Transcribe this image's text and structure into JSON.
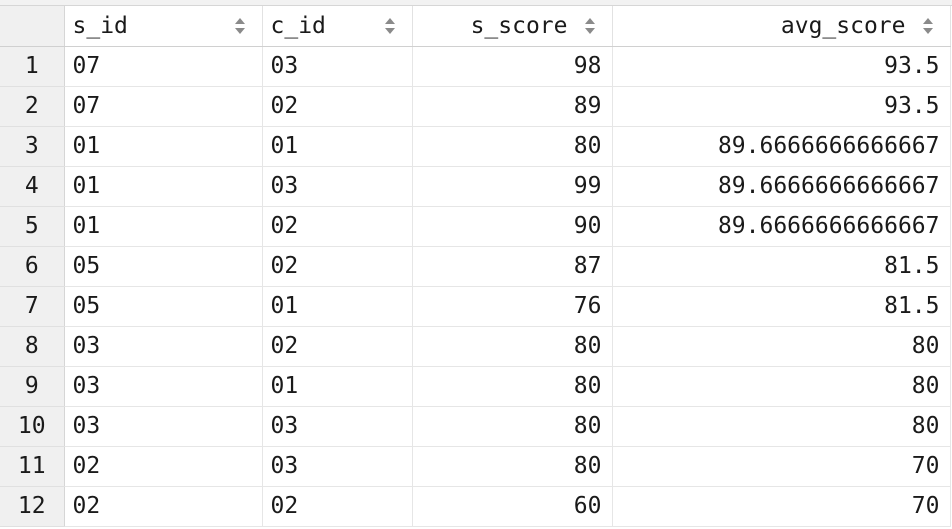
{
  "table": {
    "columns": [
      {
        "label": "s_id",
        "align": "left"
      },
      {
        "label": "c_id",
        "align": "left"
      },
      {
        "label": "s_score",
        "align": "right"
      },
      {
        "label": "avg_score",
        "align": "right"
      }
    ],
    "rows": [
      {
        "num": "1",
        "s_id": "07",
        "c_id": "03",
        "s_score": "98",
        "avg_score": "93.5"
      },
      {
        "num": "2",
        "s_id": "07",
        "c_id": "02",
        "s_score": "89",
        "avg_score": "93.5"
      },
      {
        "num": "3",
        "s_id": "01",
        "c_id": "01",
        "s_score": "80",
        "avg_score": "89.6666666666667"
      },
      {
        "num": "4",
        "s_id": "01",
        "c_id": "03",
        "s_score": "99",
        "avg_score": "89.6666666666667"
      },
      {
        "num": "5",
        "s_id": "01",
        "c_id": "02",
        "s_score": "90",
        "avg_score": "89.6666666666667"
      },
      {
        "num": "6",
        "s_id": "05",
        "c_id": "02",
        "s_score": "87",
        "avg_score": "81.5"
      },
      {
        "num": "7",
        "s_id": "05",
        "c_id": "01",
        "s_score": "76",
        "avg_score": "81.5"
      },
      {
        "num": "8",
        "s_id": "03",
        "c_id": "02",
        "s_score": "80",
        "avg_score": "80"
      },
      {
        "num": "9",
        "s_id": "03",
        "c_id": "01",
        "s_score": "80",
        "avg_score": "80"
      },
      {
        "num": "10",
        "s_id": "03",
        "c_id": "03",
        "s_score": "80",
        "avg_score": "80"
      },
      {
        "num": "11",
        "s_id": "02",
        "c_id": "03",
        "s_score": "80",
        "avg_score": "70"
      },
      {
        "num": "12",
        "s_id": "02",
        "c_id": "02",
        "s_score": "60",
        "avg_score": "70"
      }
    ]
  },
  "icons": {
    "sort": "sort-icon"
  },
  "colors": {
    "header_bg": "#ffffff",
    "rownum_bg": "#f0f0f0",
    "grid_line": "#e6e6e6",
    "sort_icon": "#8a8a8a"
  }
}
